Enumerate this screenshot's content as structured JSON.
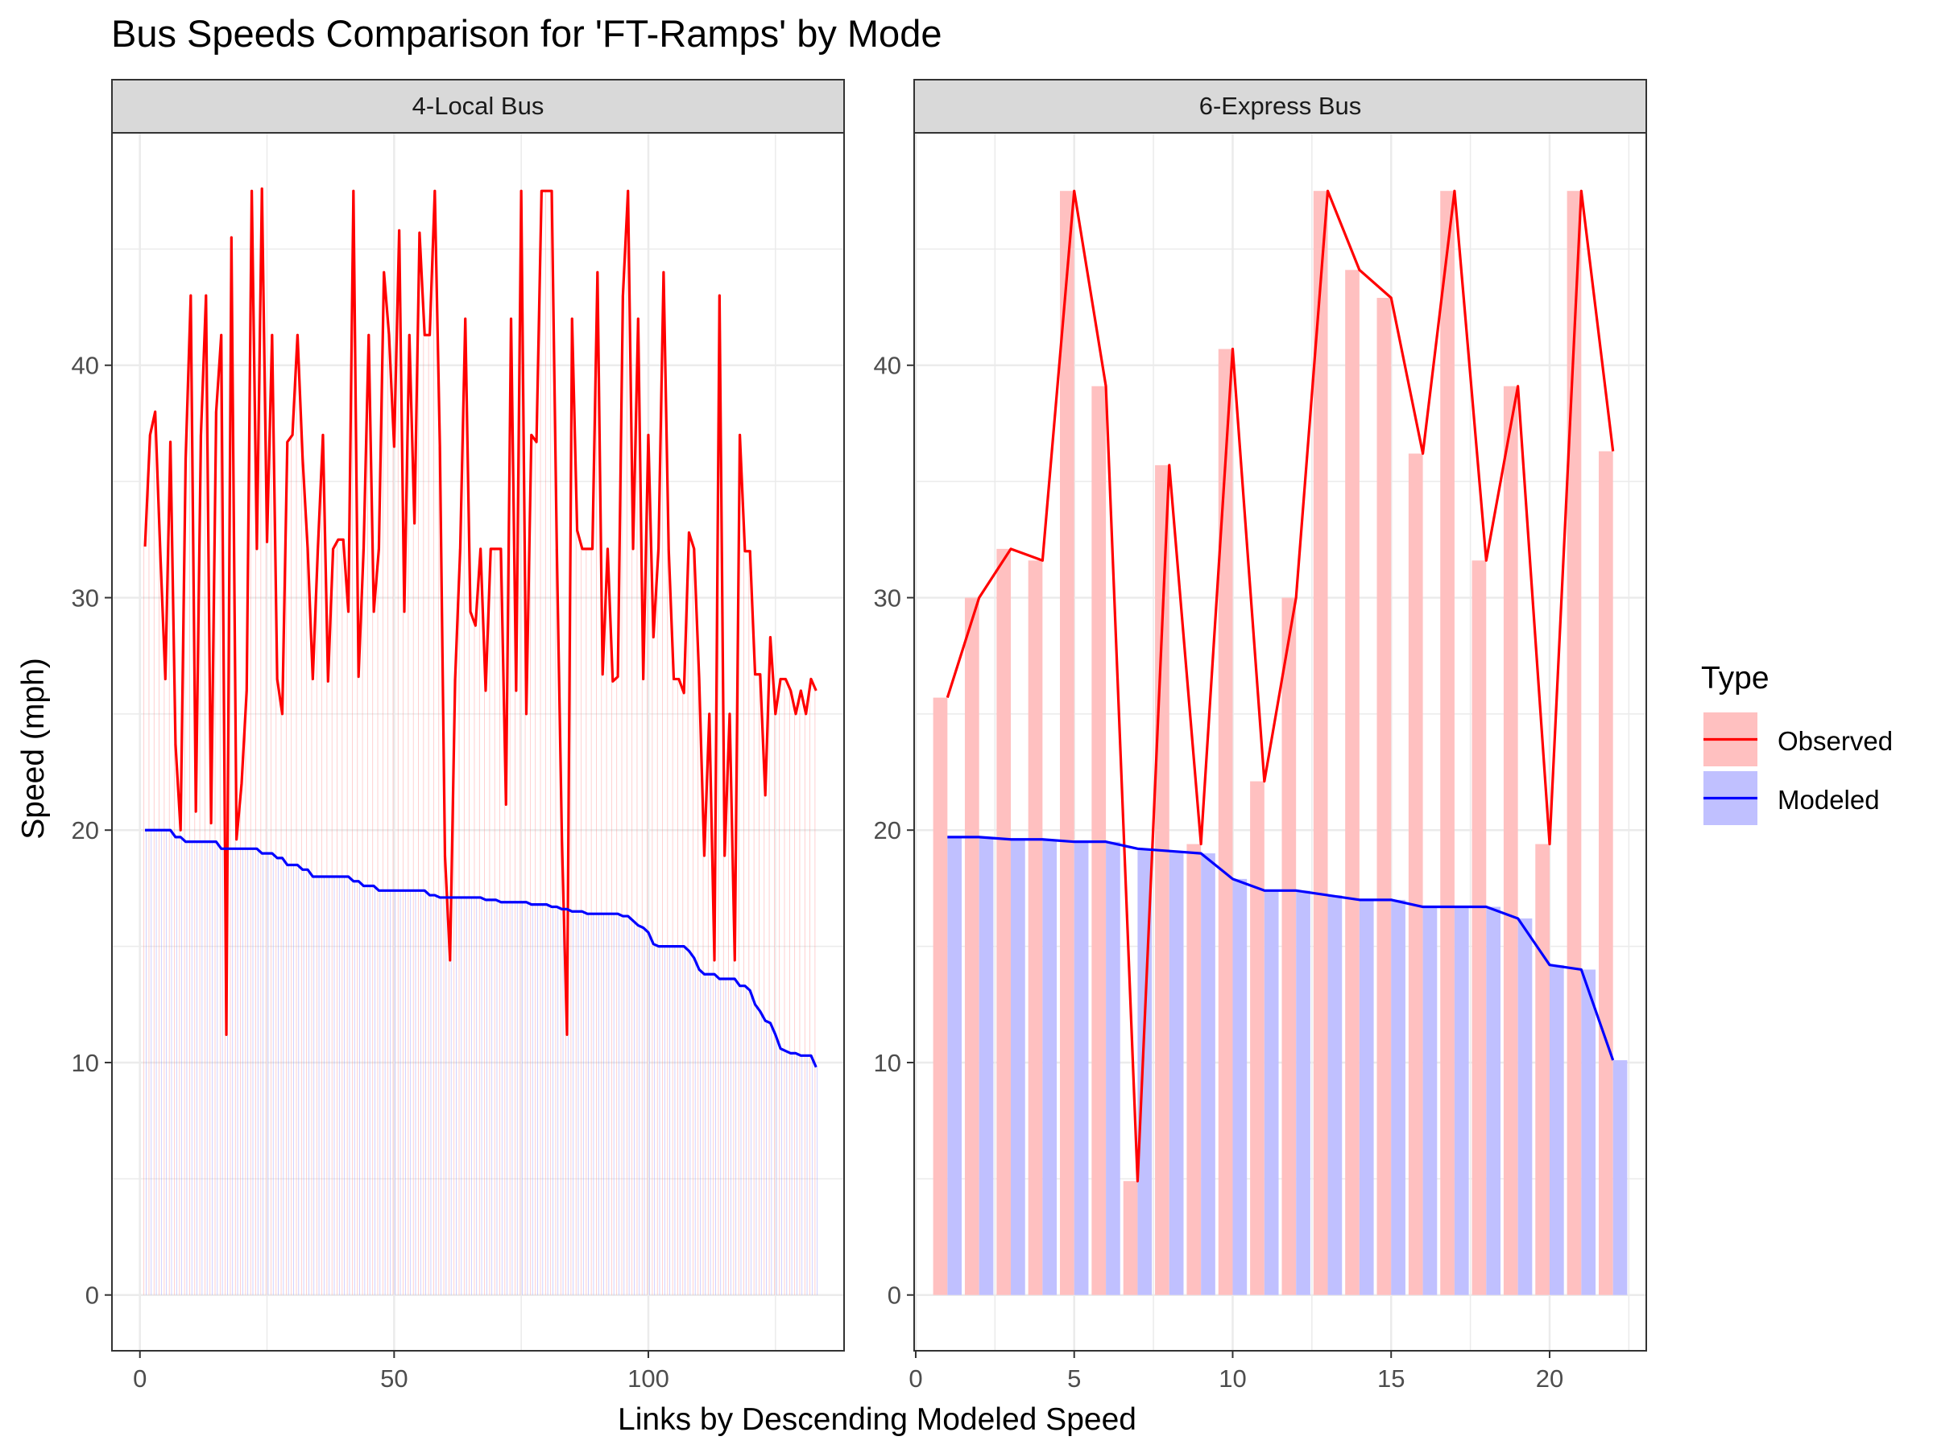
{
  "chart_data": {
    "type": "bar",
    "title": "Bus Speeds Comparison for 'FT-Ramps' by Mode",
    "xlabel": "Links by Descending Modeled Speed",
    "ylabel": "Speed (mph)",
    "ylim": [
      -2.4,
      50.0
    ],
    "y_ticks": [
      0,
      10,
      20,
      30,
      40
    ],
    "grid": true,
    "legend": {
      "title": "Type",
      "position": "right",
      "entries": [
        "Observed",
        "Modeled"
      ]
    },
    "colors": {
      "observed_line": "#ff0000",
      "observed_bar": "#ffc0c0",
      "modeled_line": "#0000ff",
      "modeled_bar": "#c0c0ff",
      "strip": "#d9d9d9",
      "panel_border": "#333333",
      "grid": "#ebebeb"
    },
    "panels": [
      {
        "strip": "4-Local Bus",
        "xlim": [
          -5.5,
          138.5
        ],
        "x_ticks": [
          0,
          50,
          100
        ],
        "observed": [
          32.2,
          37.0,
          38.0,
          32.0,
          26.5,
          36.7,
          23.7,
          20.0,
          36.0,
          43.0,
          20.8,
          37.0,
          43.0,
          20.3,
          38.0,
          41.3,
          11.2,
          45.5,
          19.6,
          22.0,
          26.0,
          47.5,
          32.1,
          47.6,
          32.4,
          41.3,
          26.5,
          25.0,
          36.7,
          37.0,
          41.3,
          36.0,
          32.1,
          26.5,
          32.1,
          37.0,
          26.4,
          32.1,
          32.5,
          32.5,
          29.4,
          47.5,
          26.6,
          32.1,
          41.3,
          29.4,
          32.1,
          44.0,
          41.3,
          36.5,
          45.8,
          29.4,
          41.3,
          33.2,
          45.7,
          41.3,
          41.3,
          47.5,
          36.5,
          18.9,
          14.4,
          26.5,
          32.1,
          42.0,
          29.4,
          28.8,
          32.1,
          26.0,
          32.1,
          32.1,
          32.1,
          21.1,
          42.0,
          26.0,
          47.5,
          25.0,
          37.0,
          36.7,
          47.5,
          47.5,
          47.5,
          32.1,
          19.6,
          11.2,
          42.0,
          32.9,
          32.1,
          32.1,
          32.1,
          44.0,
          26.7,
          32.1,
          26.4,
          26.6,
          43.0,
          47.5,
          32.1,
          42.0,
          26.5,
          37.0,
          28.3,
          32.1,
          44.0,
          32.1,
          26.5,
          26.5,
          25.9,
          32.8,
          32.1,
          26.5,
          18.9,
          25.0,
          14.4,
          43.0,
          18.9,
          25.0,
          14.4,
          37.0,
          32.0,
          32.0,
          26.7,
          26.7,
          21.5,
          28.3,
          25.0,
          26.5,
          26.5,
          26.0,
          25.0,
          26.0,
          25.0,
          26.5,
          26.0
        ],
        "modeled": [
          20.0,
          20.0,
          20.0,
          20.0,
          20.0,
          20.0,
          19.7,
          19.7,
          19.5,
          19.5,
          19.5,
          19.5,
          19.5,
          19.5,
          19.5,
          19.2,
          19.2,
          19.2,
          19.2,
          19.2,
          19.2,
          19.2,
          19.2,
          19.0,
          19.0,
          19.0,
          18.8,
          18.8,
          18.5,
          18.5,
          18.5,
          18.3,
          18.3,
          18.0,
          18.0,
          18.0,
          18.0,
          18.0,
          18.0,
          18.0,
          18.0,
          17.8,
          17.8,
          17.6,
          17.6,
          17.6,
          17.4,
          17.4,
          17.4,
          17.4,
          17.4,
          17.4,
          17.4,
          17.4,
          17.4,
          17.4,
          17.2,
          17.2,
          17.1,
          17.1,
          17.1,
          17.1,
          17.1,
          17.1,
          17.1,
          17.1,
          17.1,
          17.0,
          17.0,
          17.0,
          16.9,
          16.9,
          16.9,
          16.9,
          16.9,
          16.9,
          16.8,
          16.8,
          16.8,
          16.8,
          16.7,
          16.7,
          16.6,
          16.6,
          16.5,
          16.5,
          16.5,
          16.4,
          16.4,
          16.4,
          16.4,
          16.4,
          16.4,
          16.4,
          16.3,
          16.3,
          16.1,
          15.9,
          15.8,
          15.6,
          15.1,
          15.0,
          15.0,
          15.0,
          15.0,
          15.0,
          15.0,
          14.8,
          14.5,
          14.0,
          13.8,
          13.8,
          13.8,
          13.6,
          13.6,
          13.6,
          13.6,
          13.3,
          13.3,
          13.1,
          12.5,
          12.2,
          11.8,
          11.7,
          11.2,
          10.6,
          10.5,
          10.4,
          10.4,
          10.3,
          10.3,
          10.3,
          9.8
        ]
      },
      {
        "strip": "6-Express Bus",
        "xlim": [
          -0.05,
          23.05
        ],
        "x_ticks": [
          0,
          5,
          10,
          15,
          20
        ],
        "observed": [
          25.7,
          30.0,
          32.1,
          31.6,
          47.5,
          39.1,
          4.9,
          35.7,
          19.4,
          40.7,
          22.1,
          30.0,
          47.5,
          44.1,
          42.9,
          36.2,
          47.5,
          31.6,
          39.1,
          19.4,
          47.5,
          36.3
        ],
        "modeled": [
          19.7,
          19.7,
          19.6,
          19.6,
          19.5,
          19.5,
          19.2,
          19.1,
          19.0,
          17.9,
          17.4,
          17.4,
          17.2,
          17.0,
          17.0,
          16.7,
          16.7,
          16.7,
          16.2,
          14.2,
          14.0,
          10.1
        ]
      }
    ]
  }
}
